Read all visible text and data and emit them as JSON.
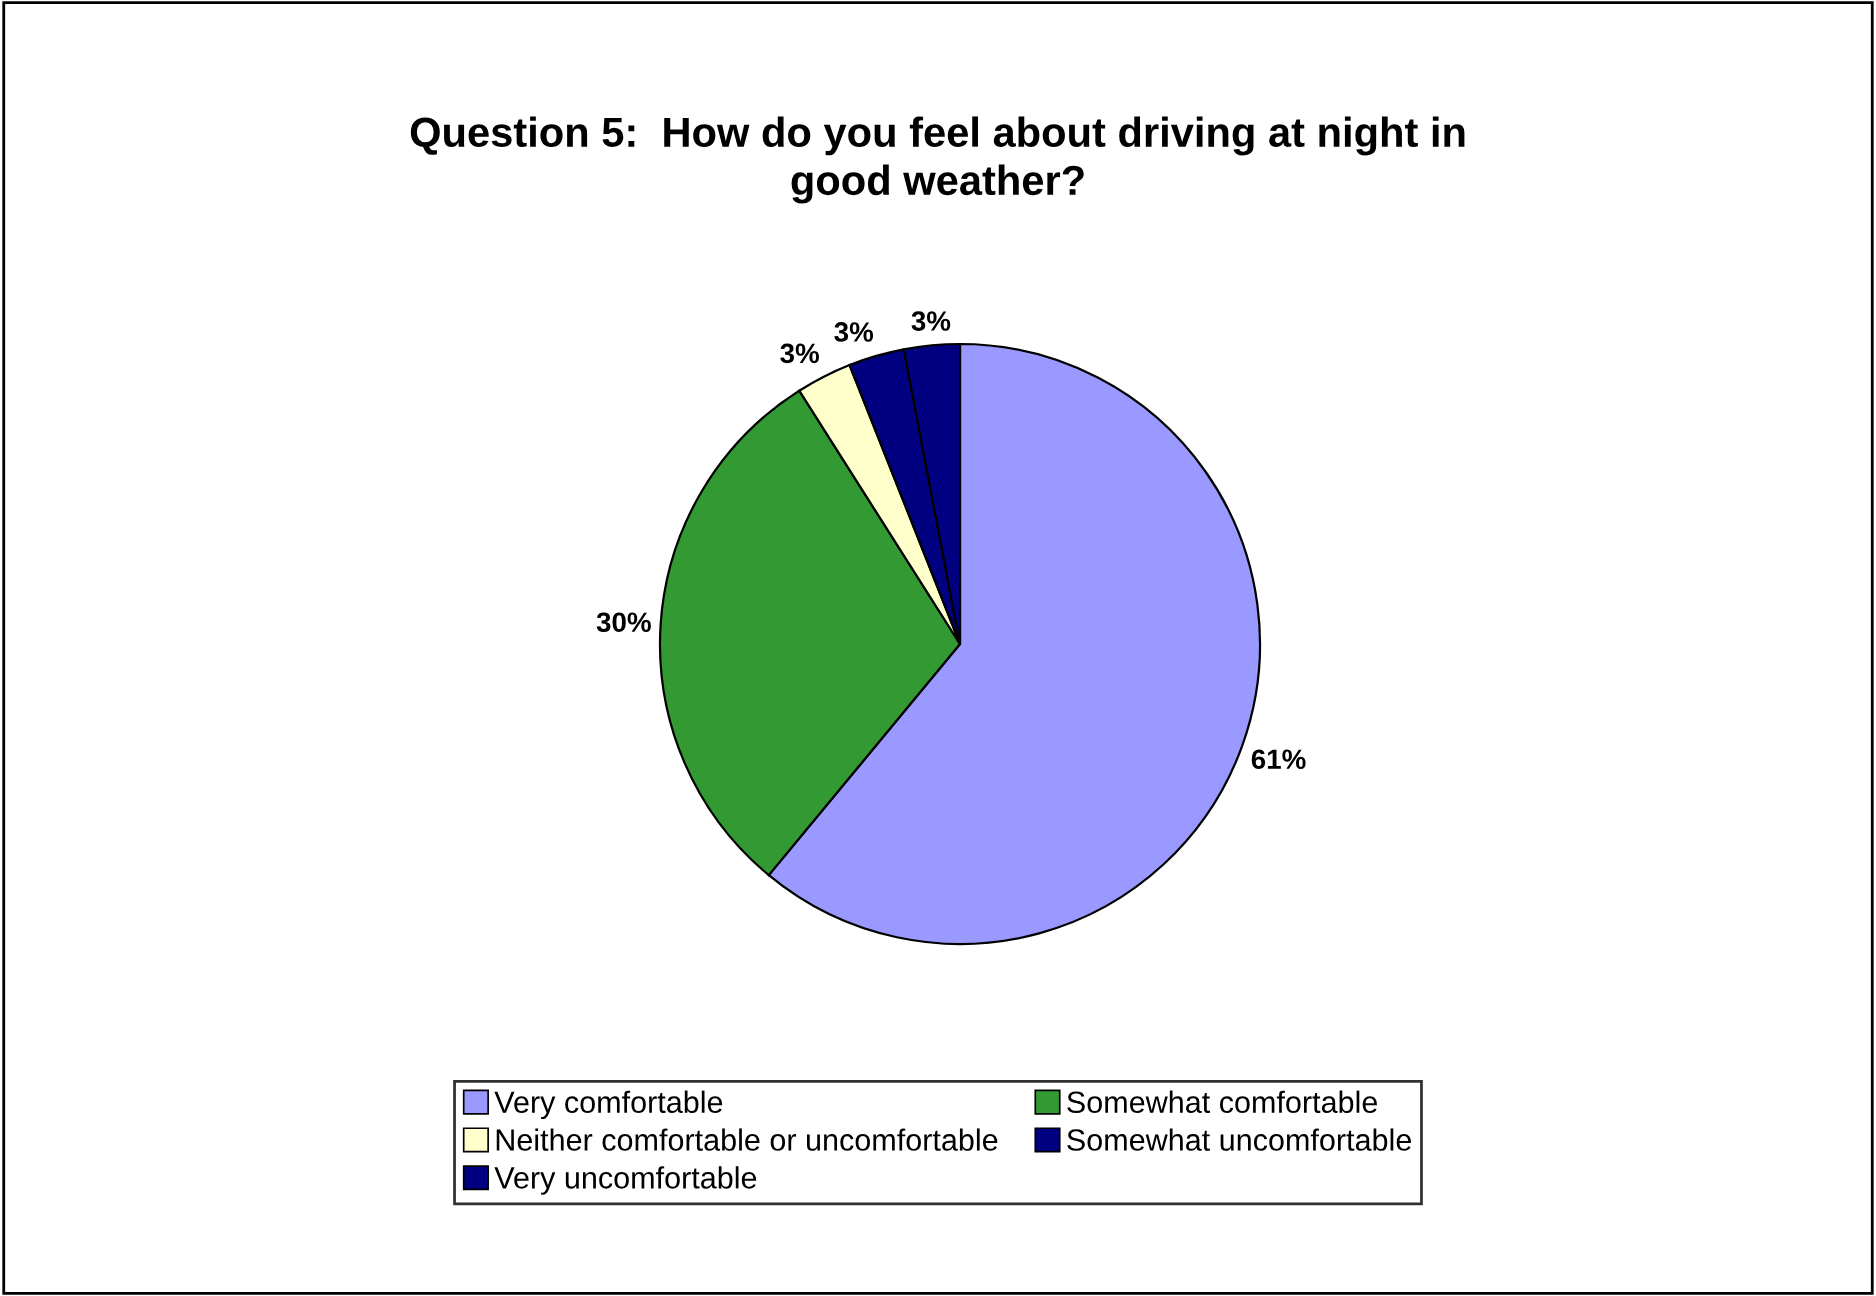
{
  "chart_data": {
    "type": "pie",
    "title": "Question 5:  How do you feel about driving at night in good weather?",
    "categories": [
      "Very comfortable",
      "Somewhat comfortable",
      "Neither comfortable or uncomfortable",
      "Somewhat uncomfortable",
      "Very uncomfortable"
    ],
    "values": [
      61,
      30,
      3,
      3,
      3
    ],
    "value_labels": [
      "61%",
      "30%",
      "3%",
      "3%",
      "3%"
    ],
    "colors": [
      "#9999ff",
      "#339933",
      "#ffffcc",
      "#000080",
      "#000080"
    ],
    "legend": "bottom"
  }
}
